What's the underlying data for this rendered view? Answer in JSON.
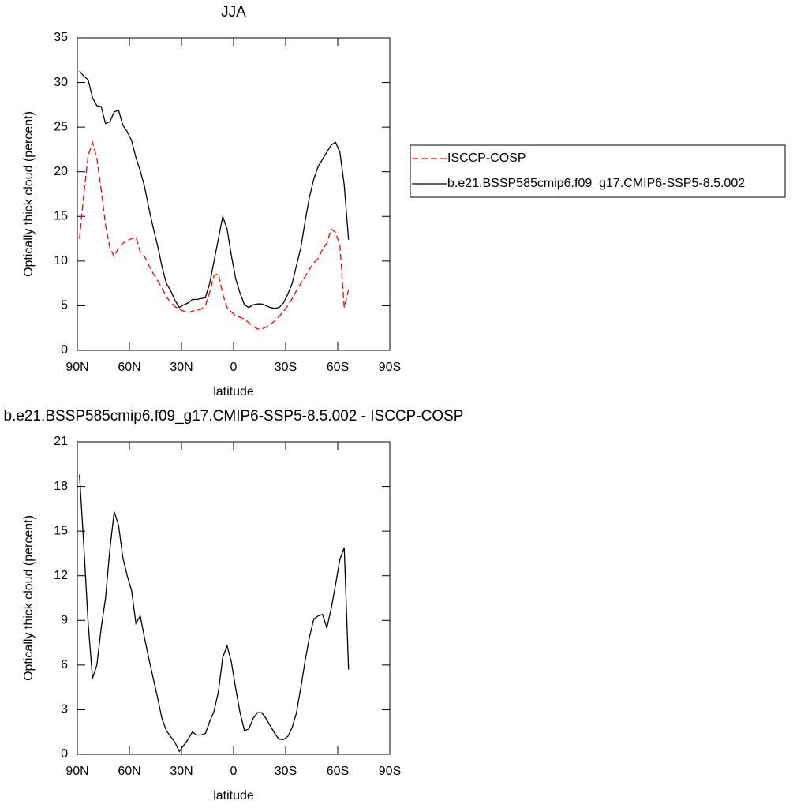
{
  "chart_data": [
    {
      "type": "line",
      "title": "JJA",
      "xlabel": "latitude",
      "ylabel": "Optically thick cloud (percent)",
      "x": [
        88.75,
        86.25,
        83.75,
        81.25,
        78.75,
        76.25,
        73.75,
        71.25,
        68.75,
        66.25,
        63.75,
        61.25,
        58.75,
        56.25,
        53.75,
        51.25,
        48.75,
        46.25,
        43.75,
        41.25,
        38.75,
        36.25,
        33.75,
        31.25,
        28.75,
        26.25,
        23.75,
        21.25,
        18.75,
        16.25,
        13.75,
        11.25,
        8.75,
        6.25,
        3.75,
        1.25,
        -1.25,
        -3.75,
        -6.25,
        -8.75,
        -11.25,
        -13.75,
        -16.25,
        -18.75,
        -21.25,
        -23.75,
        -26.25,
        -28.75,
        -31.25,
        -33.75,
        -36.25,
        -38.75,
        -41.25,
        -43.75,
        -46.25,
        -48.75,
        -51.25,
        -53.75,
        -56.25,
        -58.75,
        -61.25,
        -63.75,
        -66.25
      ],
      "series": [
        {
          "name": "ISCCP-COSP",
          "color": "#ff0000",
          "style": "dashed",
          "values": [
            12.5,
            17.5,
            21.8,
            23.3,
            21.5,
            18.0,
            14.0,
            11.5,
            10.5,
            11.5,
            12.0,
            12.3,
            12.5,
            12.7,
            11.0,
            10.5,
            9.5,
            8.6,
            7.8,
            7.0,
            6.0,
            5.4,
            4.9,
            4.6,
            4.4,
            4.2,
            4.4,
            4.5,
            4.6,
            5.0,
            6.5,
            8.4,
            8.6,
            6.3,
            4.8,
            4.3,
            3.9,
            3.7,
            3.5,
            3.1,
            2.7,
            2.4,
            2.4,
            2.6,
            2.9,
            3.3,
            3.8,
            4.4,
            5.0,
            5.8,
            6.7,
            7.5,
            8.3,
            9.1,
            9.8,
            10.3,
            11.3,
            12.0,
            13.6,
            13.2,
            11.8,
            4.8,
            6.8
          ]
        },
        {
          "name": "b.e21.BSSP585cmip6.f09_g17.CMIP6-SSP5-8.5.002",
          "color": "#000000",
          "style": "solid",
          "values": [
            31.3,
            30.7,
            30.3,
            28.3,
            27.4,
            27.3,
            25.4,
            25.6,
            26.7,
            26.9,
            25.2,
            24.5,
            23.5,
            21.6,
            20.1,
            18.3,
            15.9,
            13.7,
            11.7,
            9.4,
            7.5,
            6.7,
            5.6,
            4.8,
            5.1,
            5.3,
            5.7,
            5.7,
            5.8,
            5.9,
            7.5,
            10.0,
            12.5,
            15.0,
            13.6,
            10.6,
            8.0,
            6.4,
            5.1,
            4.8,
            5.1,
            5.2,
            5.2,
            5.0,
            4.8,
            4.7,
            4.8,
            5.3,
            6.3,
            7.5,
            9.5,
            11.5,
            14.5,
            17.2,
            19.2,
            20.6,
            21.4,
            22.2,
            23.0,
            23.3,
            22.2,
            18.5,
            12.4
          ]
        }
      ],
      "xlim": [
        90,
        -90
      ],
      "xticks": [
        {
          "value": 90,
          "label": "90N"
        },
        {
          "value": 60,
          "label": "60N"
        },
        {
          "value": 30,
          "label": "30N"
        },
        0,
        {
          "value": -30,
          "label": "30S"
        },
        {
          "value": -60,
          "label": "60S"
        },
        {
          "value": -90,
          "label": "90S"
        }
      ],
      "ylim": [
        0,
        35
      ],
      "yticks": [
        0,
        5,
        10,
        15,
        20,
        25,
        30,
        35
      ],
      "legend": "right"
    },
    {
      "type": "line",
      "title": "b.e21.BSSP585cmip6.f09_g17.CMIP6-SSP5-8.5.002 - ISCCP-COSP",
      "xlabel": "latitude",
      "ylabel": "Optically thick cloud (percent)",
      "x": [
        88.75,
        86.25,
        83.75,
        81.25,
        78.75,
        76.25,
        73.75,
        71.25,
        68.75,
        66.25,
        63.75,
        61.25,
        58.75,
        56.25,
        53.75,
        51.25,
        48.75,
        46.25,
        43.75,
        41.25,
        38.75,
        36.25,
        33.75,
        31.25,
        28.75,
        26.25,
        23.75,
        21.25,
        18.75,
        16.25,
        13.75,
        11.25,
        8.75,
        6.25,
        3.75,
        1.25,
        -1.25,
        -3.75,
        -6.25,
        -8.75,
        -11.25,
        -13.75,
        -16.25,
        -18.75,
        -21.25,
        -23.75,
        -26.25,
        -28.75,
        -31.25,
        -33.75,
        -36.25,
        -38.75,
        -41.25,
        -43.75,
        -46.25,
        -48.75,
        -51.25,
        -53.75,
        -56.25,
        -58.75,
        -61.25,
        -63.75,
        -66.25
      ],
      "color": "#000000",
      "values": [
        18.8,
        14.0,
        8.8,
        5.1,
        6.0,
        8.5,
        10.5,
        13.8,
        16.3,
        15.4,
        13.2,
        12.0,
        11.0,
        8.8,
        9.3,
        7.8,
        6.4,
        5.1,
        3.8,
        2.4,
        1.6,
        1.2,
        0.8,
        0.2,
        0.6,
        1.0,
        1.5,
        1.3,
        1.3,
        1.4,
        2.2,
        2.9,
        4.2,
        6.5,
        7.3,
        6.2,
        4.4,
        2.8,
        1.6,
        1.7,
        2.4,
        2.8,
        2.8,
        2.4,
        1.9,
        1.4,
        1.0,
        1.0,
        1.2,
        1.8,
        2.8,
        4.5,
        6.3,
        7.9,
        9.1,
        9.3,
        9.4,
        8.5,
        9.8,
        11.4,
        13.1,
        13.9,
        5.7
      ],
      "xlim": [
        90,
        -90
      ],
      "xticks": [
        {
          "value": 90,
          "label": "90N"
        },
        {
          "value": 60,
          "label": "60N"
        },
        {
          "value": 30,
          "label": "30N"
        },
        0,
        {
          "value": -30,
          "label": "30S"
        },
        {
          "value": -60,
          "label": "60S"
        },
        {
          "value": -90,
          "label": "90S"
        }
      ],
      "ylim": [
        0,
        21
      ],
      "yticks": [
        0,
        3,
        6,
        9,
        12,
        15,
        18,
        21
      ]
    }
  ]
}
